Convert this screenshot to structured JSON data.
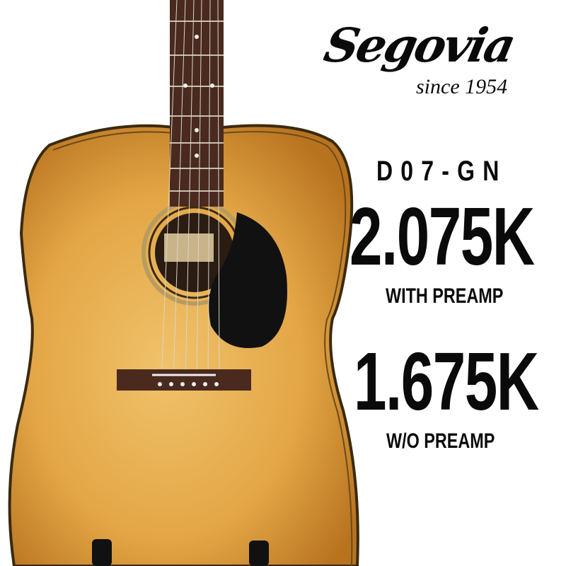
{
  "brand": {
    "logo_text": "Segovia",
    "tagline": "since 1954"
  },
  "product": {
    "model": "D07-GN",
    "price_with_preamp": "2.075K",
    "label_with_preamp": "WITH PREAMP",
    "price_without_preamp": "1.675K",
    "label_without_preamp": "W/O PREAMP"
  },
  "colors": {
    "top_wood": "#e2a848",
    "pickguard": "#111111",
    "fretboard": "#4a2a1e",
    "text": "#0a0a0a"
  }
}
